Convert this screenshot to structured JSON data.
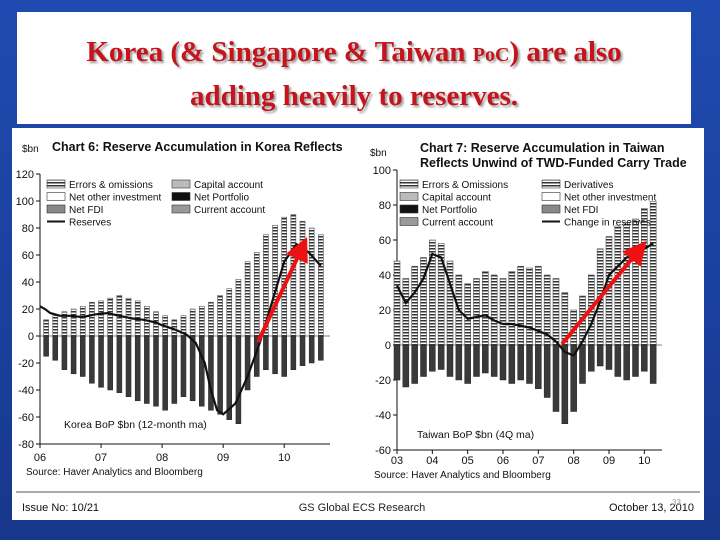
{
  "slide": {
    "title_line1_pre": "Korea (& Singapore & Taiwan ",
    "title_line1_poc": "PoC",
    "title_line1_post": ") are also",
    "title_line2": "adding heavily to reserves."
  },
  "footer": {
    "issue": "Issue No: 10/21",
    "center": "GS Global ECS Research",
    "date": "October 13, 2010",
    "page": "33"
  },
  "chart_data": [
    {
      "type": "bar",
      "title": "Chart 6: Reserve Accumulation in Korea Reflects",
      "unit_label": "$bn",
      "inner_label": "Korea BoP $bn (12-month ma)",
      "source": "Source: Haver Analytics and Bloomberg",
      "ylim": [
        -80,
        120
      ],
      "yticks": [
        120,
        100,
        80,
        60,
        40,
        20,
        0,
        -20,
        -40,
        -60,
        -80
      ],
      "x_ticks": [
        "06",
        "07",
        "08",
        "09",
        "10"
      ],
      "x_range": [
        2006.0,
        2010.75
      ],
      "legend": {
        "left": [
          "Errors & omissions",
          "Net other investment",
          "Net FDI",
          "Reserves"
        ],
        "right": [
          "Capital account",
          "Net Portfolio",
          "Current account"
        ]
      },
      "legend_labels": {
        "errors": "Errors & omissions",
        "netother": "Net other investment",
        "netfdi": "Net FDI",
        "reserves": "Reserves",
        "capital": "Capital account",
        "portfolio": "Net Portfolio",
        "current": "Current account"
      },
      "series": [
        {
          "name": "Reserves",
          "x": [
            2006.0,
            2006.08,
            2006.17,
            2006.33,
            2006.5,
            2006.7,
            2006.9,
            2007.1,
            2007.3,
            2007.5,
            2007.7,
            2007.9,
            2008.0,
            2008.2,
            2008.4,
            2008.55,
            2008.7,
            2008.8,
            2008.9,
            2009.0,
            2009.2,
            2009.4,
            2009.6,
            2009.8,
            2010.0,
            2010.2,
            2010.4,
            2010.6
          ],
          "values": [
            22,
            20,
            17,
            15,
            15,
            14,
            16,
            17,
            15,
            13,
            12,
            10,
            8,
            5,
            1,
            -5,
            -20,
            -40,
            -55,
            -58,
            -50,
            -30,
            -5,
            25,
            55,
            68,
            62,
            52
          ]
        }
      ],
      "bars": {
        "x": [
          2006.1,
          2006.25,
          2006.4,
          2006.55,
          2006.7,
          2006.85,
          2007.0,
          2007.15,
          2007.3,
          2007.45,
          2007.6,
          2007.75,
          2007.9,
          2008.05,
          2008.2,
          2008.35,
          2008.5,
          2008.65,
          2008.8,
          2008.95,
          2009.1,
          2009.25,
          2009.4,
          2009.55,
          2009.7,
          2009.85,
          2010.0,
          2010.15,
          2010.3,
          2010.45,
          2010.6
        ],
        "positive": [
          12,
          15,
          18,
          20,
          22,
          25,
          26,
          28,
          30,
          28,
          26,
          22,
          18,
          15,
          12,
          15,
          20,
          22,
          25,
          30,
          35,
          42,
          55,
          62,
          75,
          82,
          88,
          90,
          85,
          80,
          75
        ],
        "negative": [
          -15,
          -18,
          -25,
          -28,
          -30,
          -35,
          -38,
          -40,
          -42,
          -45,
          -48,
          -50,
          -52,
          -55,
          -50,
          -45,
          -48,
          -52,
          -55,
          -58,
          -62,
          -65,
          -40,
          -30,
          -25,
          -28,
          -30,
          -25,
          -22,
          -20,
          -18
        ]
      },
      "annotation": "red arrow pointing up along reserves rise"
    },
    {
      "type": "bar",
      "title": "Chart 7: Reserve Accumulation in Taiwan",
      "subtitle": "Reflects Unwind of TWD-Funded Carry Trade",
      "unit_label": "$bn",
      "inner_label": "Taiwan BoP $bn (4Q ma)",
      "source": "Source: Haver Analytics and Bloomberg",
      "ylim": [
        -60,
        100
      ],
      "yticks": [
        100,
        80,
        60,
        40,
        20,
        0,
        -20,
        -40,
        -60
      ],
      "x_ticks": [
        "03",
        "04",
        "05",
        "06",
        "07",
        "08",
        "09",
        "10"
      ],
      "x_range": [
        2003.0,
        2010.5
      ],
      "legend": {
        "left": [
          "Errors & Omissions",
          "Capital account",
          "Net Portfolio",
          "Current account"
        ],
        "right": [
          "Derivatives",
          "Net other investment",
          "Net FDI",
          "Change in reserves"
        ]
      },
      "legend_labels": {
        "errors": "Errors & Omissions",
        "capital": "Capital account",
        "portfolio": "Net Portfolio",
        "current": "Current account",
        "derivatives": "Derivatives",
        "netother": "Net other investment",
        "netfdi": "Net FDI",
        "reserves": "Change in reserves"
      },
      "series": [
        {
          "name": "Change in reserves",
          "x": [
            2003.0,
            2003.25,
            2003.5,
            2003.75,
            2004.0,
            2004.25,
            2004.5,
            2004.75,
            2005.0,
            2005.25,
            2005.5,
            2005.75,
            2006.0,
            2006.25,
            2006.5,
            2006.75,
            2007.0,
            2007.25,
            2007.5,
            2007.75,
            2008.0,
            2008.25,
            2008.5,
            2008.75,
            2009.0,
            2009.25,
            2009.5,
            2009.75,
            2010.0,
            2010.25
          ],
          "values": [
            34,
            24,
            30,
            38,
            52,
            50,
            35,
            20,
            15,
            16,
            17,
            14,
            12,
            12,
            11,
            10,
            8,
            6,
            2,
            -4,
            -6,
            2,
            12,
            25,
            40,
            45,
            50,
            52,
            55,
            58
          ]
        }
      ],
      "bars": {
        "x": [
          2003.0,
          2003.25,
          2003.5,
          2003.75,
          2004.0,
          2004.25,
          2004.5,
          2004.75,
          2005.0,
          2005.25,
          2005.5,
          2005.75,
          2006.0,
          2006.25,
          2006.5,
          2006.75,
          2007.0,
          2007.25,
          2007.5,
          2007.75,
          2008.0,
          2008.25,
          2008.5,
          2008.75,
          2009.0,
          2009.25,
          2009.5,
          2009.75,
          2010.0,
          2010.25
        ],
        "positive": [
          48,
          38,
          45,
          50,
          60,
          58,
          48,
          40,
          35,
          38,
          42,
          40,
          38,
          42,
          45,
          44,
          45,
          40,
          38,
          30,
          20,
          28,
          40,
          55,
          62,
          68,
          70,
          72,
          78,
          82
        ],
        "negative": [
          -20,
          -24,
          -22,
          -18,
          -15,
          -14,
          -18,
          -20,
          -22,
          -18,
          -16,
          -18,
          -20,
          -22,
          -20,
          -22,
          -25,
          -30,
          -38,
          -45,
          -38,
          -22,
          -15,
          -12,
          -14,
          -18,
          -20,
          -18,
          -15,
          -22
        ]
      },
      "annotation": "red arrow pointing up along change in reserves rise"
    }
  ]
}
